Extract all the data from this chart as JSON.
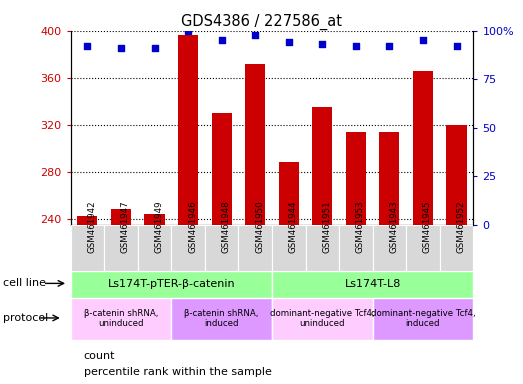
{
  "title": "GDS4386 / 227586_at",
  "samples": [
    "GSM461942",
    "GSM461947",
    "GSM461949",
    "GSM461946",
    "GSM461948",
    "GSM461950",
    "GSM461944",
    "GSM461951",
    "GSM461953",
    "GSM461943",
    "GSM461945",
    "GSM461952"
  ],
  "counts": [
    242,
    248,
    244,
    396,
    330,
    372,
    288,
    335,
    314,
    314,
    366,
    320
  ],
  "percentile_ranks": [
    92,
    91,
    91,
    100,
    95,
    98,
    94,
    93,
    92,
    92,
    95,
    92
  ],
  "ylim_left": [
    235,
    400
  ],
  "ylim_right": [
    0,
    100
  ],
  "yticks_left": [
    240,
    280,
    320,
    360,
    400
  ],
  "yticks_right": [
    0,
    25,
    50,
    75,
    100
  ],
  "ytick_right_labels": [
    "0",
    "25",
    "50",
    "75",
    "100%"
  ],
  "bar_color": "#cc0000",
  "dot_color": "#0000cc",
  "bar_bottom": 235,
  "cell_line_groups": [
    {
      "label": "Ls174T-pTER-β-catenin",
      "start": 0,
      "end": 6,
      "color": "#99ff99"
    },
    {
      "label": "Ls174T-L8",
      "start": 6,
      "end": 12,
      "color": "#99ff99"
    }
  ],
  "protocol_groups": [
    {
      "label": "β-catenin shRNA,\nuninduced",
      "start": 0,
      "end": 3,
      "color": "#ffccff"
    },
    {
      "label": "β-catenin shRNA,\ninduced",
      "start": 3,
      "end": 6,
      "color": "#dd99ff"
    },
    {
      "label": "dominant-negative Tcf4,\nuninduced",
      "start": 6,
      "end": 9,
      "color": "#ffccff"
    },
    {
      "label": "dominant-negative Tcf4,\ninduced",
      "start": 9,
      "end": 12,
      "color": "#dd99ff"
    }
  ],
  "cell_line_row_label": "cell line",
  "protocol_row_label": "protocol",
  "legend_count_label": "count",
  "legend_pct_label": "percentile rank within the sample",
  "tick_label_color_left": "#cc0000",
  "tick_label_color_right": "#0000cc",
  "plot_bg_color": "#ffffff",
  "xticklabel_bg": "#d8d8d8"
}
